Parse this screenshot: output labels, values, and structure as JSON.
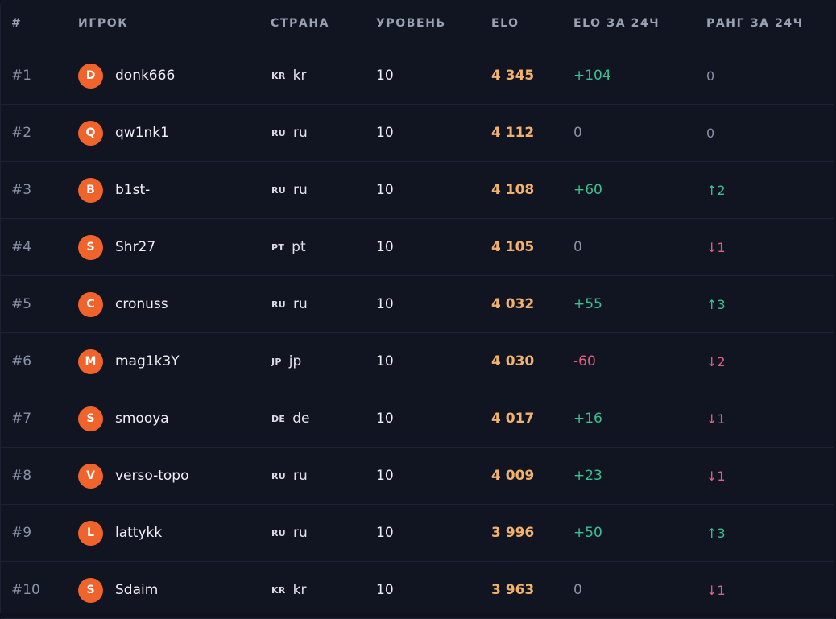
{
  "headers": {
    "rank": "#",
    "player": "ИГРОК",
    "country": "СТРАНА",
    "level": "УРОВЕНЬ",
    "elo": "ELO",
    "elo_24h": "ELO ЗА 24Ч",
    "rank_24h": "РАНГ ЗА 24Ч"
  },
  "colors": {
    "avatar": "#f0642b",
    "elo": "#f2b26c",
    "positive": "#39c28f",
    "negative": "#e0617e",
    "neutral": "#8a91a3"
  },
  "rows": [
    {
      "rank": "#1",
      "initial": "D",
      "name": "donk666",
      "code": "KR",
      "country": "kr",
      "level": "10",
      "elo": "4 345",
      "elo_delta": "+104",
      "elo_trend": "pos",
      "rank_delta": "0",
      "rank_trend": "zero"
    },
    {
      "rank": "#2",
      "initial": "Q",
      "name": "qw1nk1",
      "code": "RU",
      "country": "ru",
      "level": "10",
      "elo": "4 112",
      "elo_delta": "0",
      "elo_trend": "zero",
      "rank_delta": "0",
      "rank_trend": "zero"
    },
    {
      "rank": "#3",
      "initial": "B",
      "name": "b1st-",
      "code": "RU",
      "country": "ru",
      "level": "10",
      "elo": "4 108",
      "elo_delta": "+60",
      "elo_trend": "pos",
      "rank_delta": "↑2",
      "rank_trend": "pos"
    },
    {
      "rank": "#4",
      "initial": "S",
      "name": "Shr27",
      "code": "PT",
      "country": "pt",
      "level": "10",
      "elo": "4 105",
      "elo_delta": "0",
      "elo_trend": "zero",
      "rank_delta": "↓1",
      "rank_trend": "neg"
    },
    {
      "rank": "#5",
      "initial": "C",
      "name": "cronuss",
      "code": "RU",
      "country": "ru",
      "level": "10",
      "elo": "4 032",
      "elo_delta": "+55",
      "elo_trend": "pos",
      "rank_delta": "↑3",
      "rank_trend": "pos"
    },
    {
      "rank": "#6",
      "initial": "M",
      "name": "mag1k3Y",
      "code": "JP",
      "country": "jp",
      "level": "10",
      "elo": "4 030",
      "elo_delta": "-60",
      "elo_trend": "neg",
      "rank_delta": "↓2",
      "rank_trend": "neg"
    },
    {
      "rank": "#7",
      "initial": "S",
      "name": "smooya",
      "code": "DE",
      "country": "de",
      "level": "10",
      "elo": "4 017",
      "elo_delta": "+16",
      "elo_trend": "pos",
      "rank_delta": "↓1",
      "rank_trend": "neg"
    },
    {
      "rank": "#8",
      "initial": "V",
      "name": "verso-topo",
      "code": "RU",
      "country": "ru",
      "level": "10",
      "elo": "4 009",
      "elo_delta": "+23",
      "elo_trend": "pos",
      "rank_delta": "↓1",
      "rank_trend": "neg"
    },
    {
      "rank": "#9",
      "initial": "L",
      "name": "lattykk",
      "code": "RU",
      "country": "ru",
      "level": "10",
      "elo": "3 996",
      "elo_delta": "+50",
      "elo_trend": "pos",
      "rank_delta": "↑3",
      "rank_trend": "pos"
    },
    {
      "rank": "#10",
      "initial": "S",
      "name": "Sdaim",
      "code": "KR",
      "country": "kr",
      "level": "10",
      "elo": "3 963",
      "elo_delta": "0",
      "elo_trend": "zero",
      "rank_delta": "↓1",
      "rank_trend": "neg"
    }
  ]
}
